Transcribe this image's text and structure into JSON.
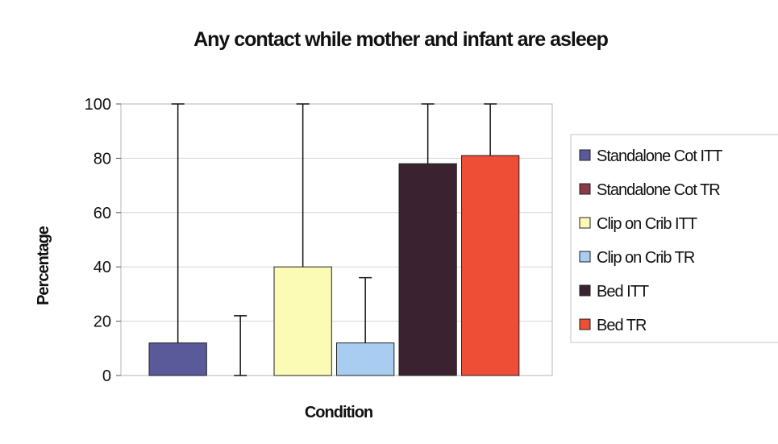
{
  "chart_data": {
    "type": "bar",
    "title": "Any contact while mother and infant are asleep",
    "xlabel": "Condition",
    "ylabel": "Percentage",
    "ylim": [
      0,
      100
    ],
    "yticks": [
      "0",
      "20",
      "40",
      "60",
      "80",
      "100"
    ],
    "grid": true,
    "legend_position": "right",
    "series": [
      {
        "name": "Standalone Cot ITT",
        "value": 12,
        "error_upper": 100,
        "color": "#5a5a9a"
      },
      {
        "name": "Standalone Cot TR",
        "value": 0,
        "error_upper": 22,
        "color": "#8b3a48"
      },
      {
        "name": "Clip on Crib ITT",
        "value": 40,
        "error_upper": 100,
        "color": "#fbfbb6"
      },
      {
        "name": "Clip on Crib TR",
        "value": 12,
        "error_upper": 36,
        "color": "#a9cdf0"
      },
      {
        "name": "Bed ITT",
        "value": 78,
        "error_upper": 100,
        "color": "#3a2230"
      },
      {
        "name": "Bed TR",
        "value": 81,
        "error_upper": 100,
        "color": "#ee4d36"
      }
    ]
  }
}
